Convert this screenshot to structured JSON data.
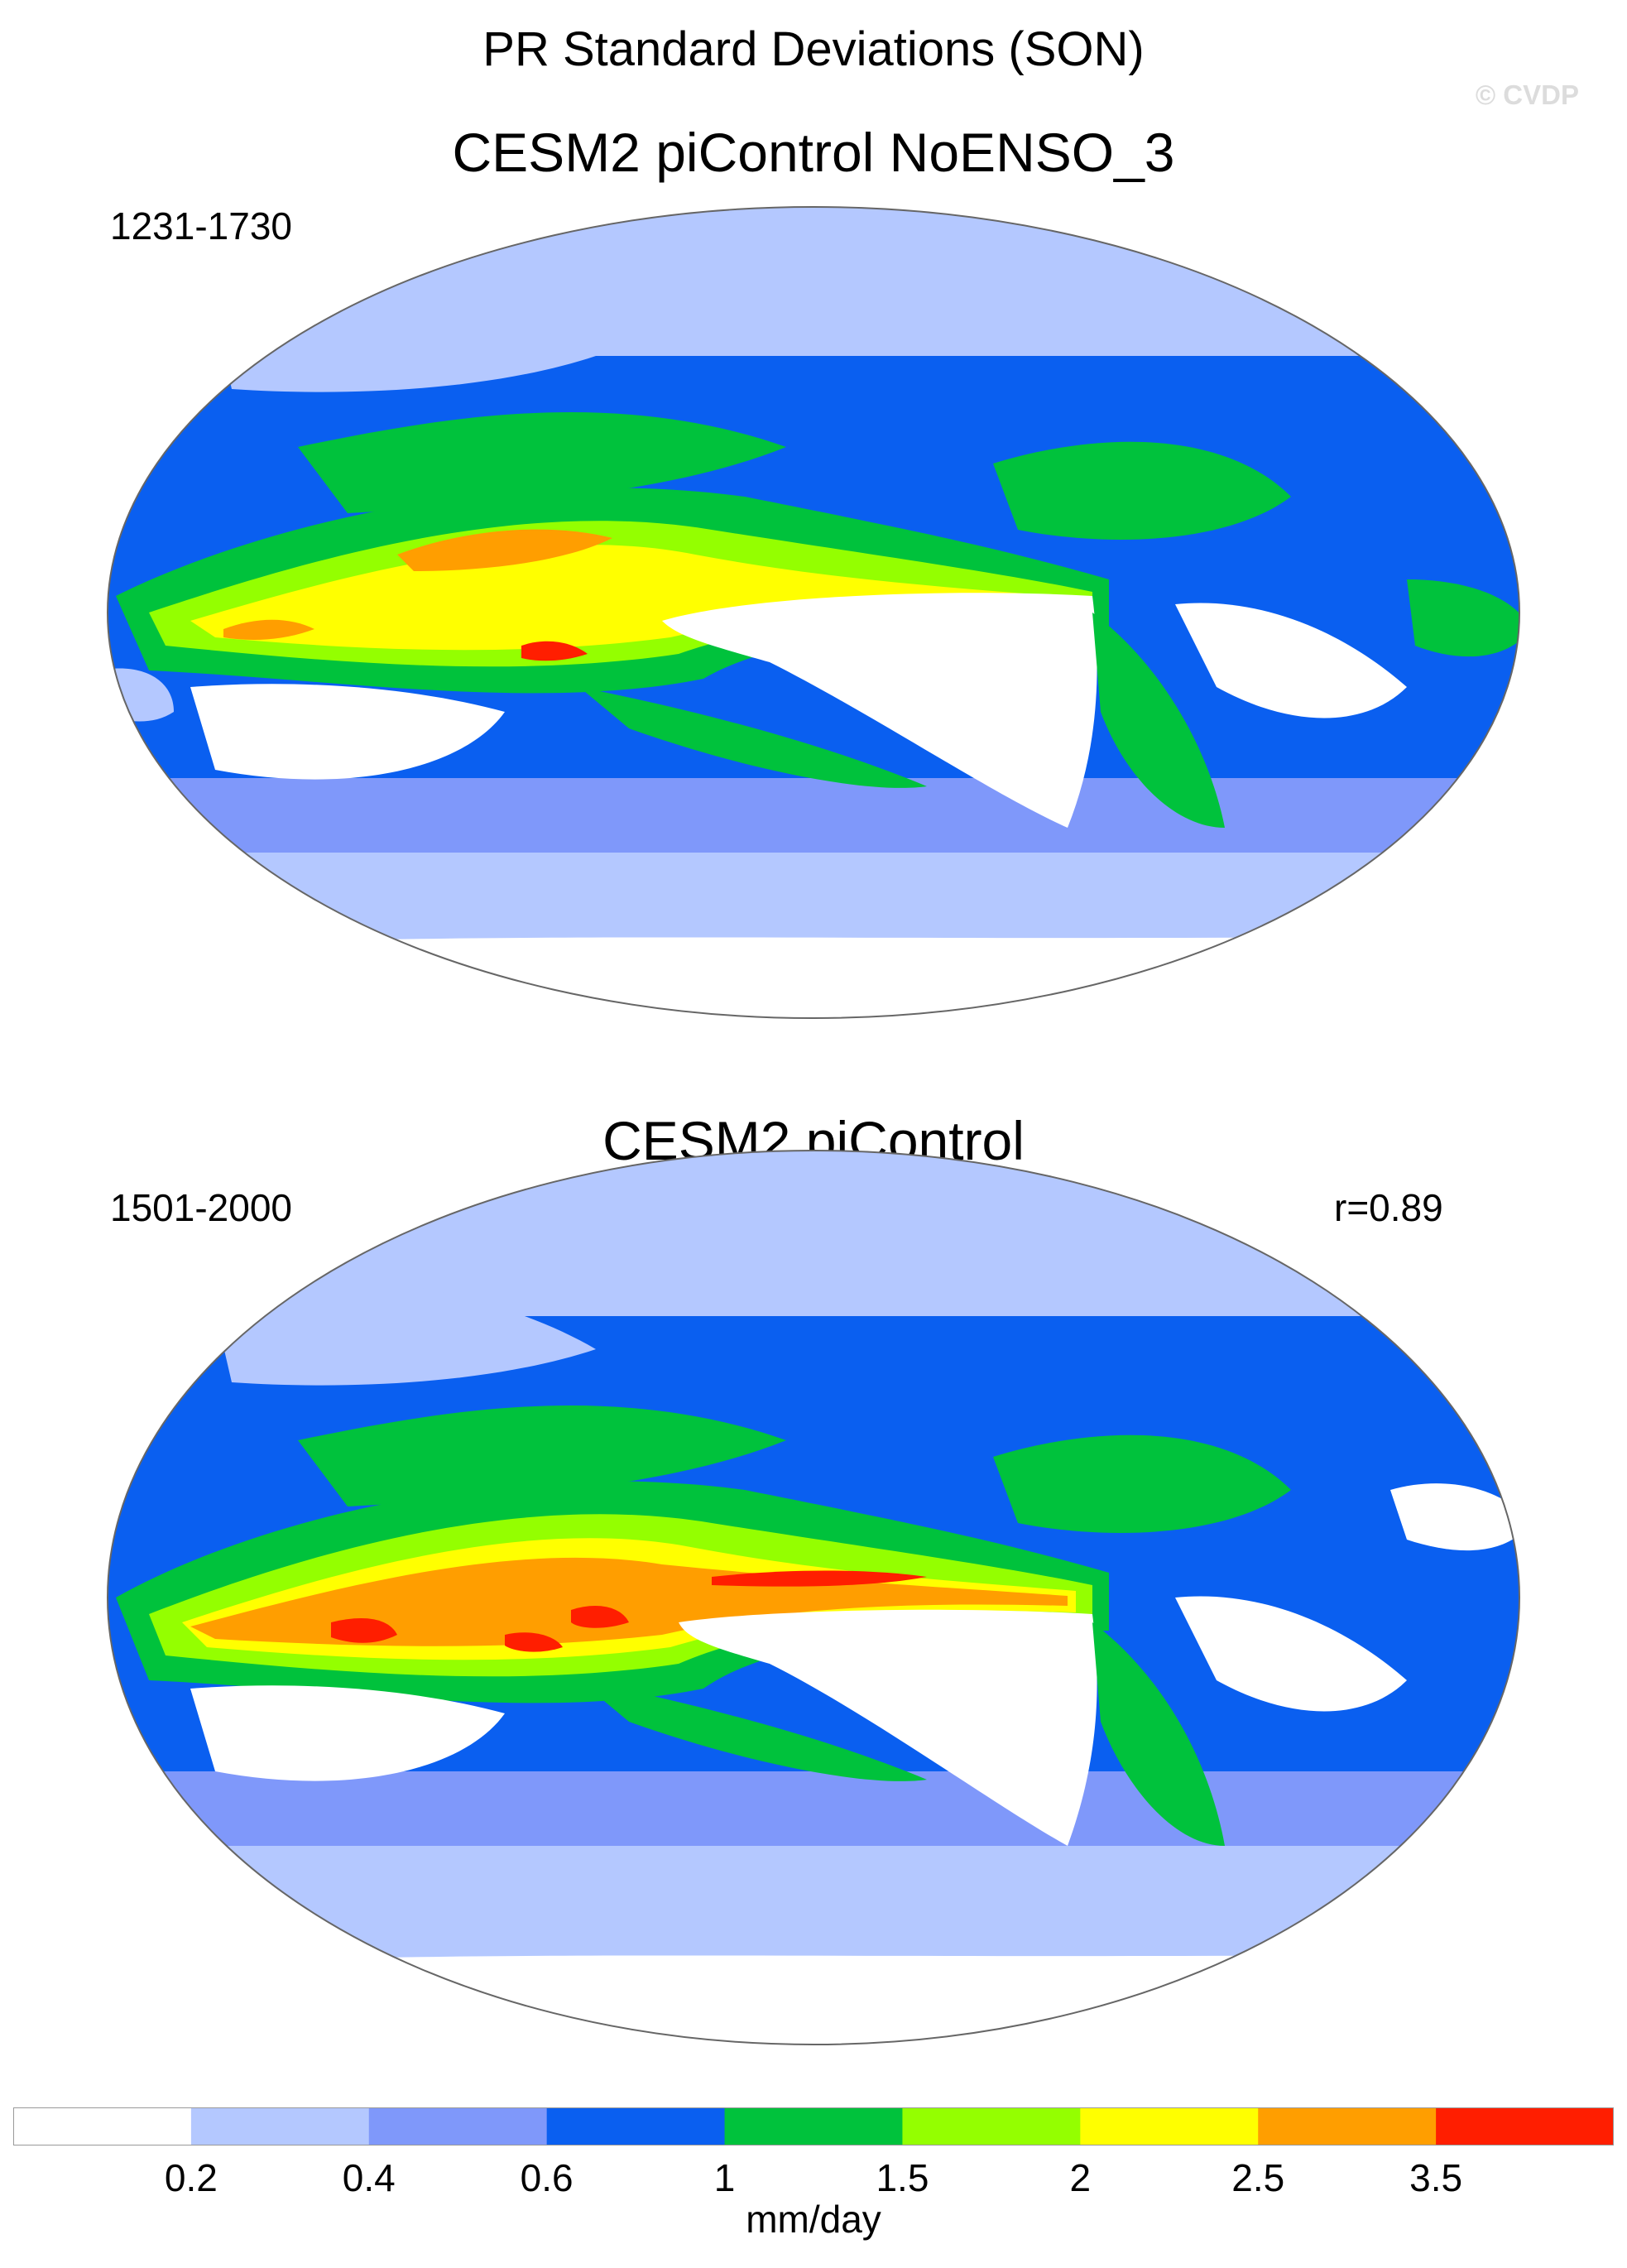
{
  "figure": {
    "title": "PR Standard Deviations (SON)",
    "watermark": "© CVDP"
  },
  "panels": [
    {
      "title": "CESM2 piControl NoENSO_3",
      "years": "1231-1730",
      "stat": ""
    },
    {
      "title": "CESM2 piControl",
      "years": "1501-2000",
      "stat": "r=0.89"
    }
  ],
  "colorbar": {
    "units": "mm/day",
    "ticks": [
      "0.2",
      "0.4",
      "0.6",
      "1",
      "1.5",
      "2",
      "2.5",
      "3.5"
    ],
    "colors": [
      "#ffffff",
      "#b4c8ff",
      "#7f98fa",
      "#0a5ff0",
      "#00c23c",
      "#94ff00",
      "#ffff00",
      "#ff9e00",
      "#ff1e00"
    ]
  },
  "chart_data": {
    "type": "heatmap",
    "projection": "Robinson, Pacific-centred",
    "variable": "precipitation interannual standard deviation, September–November",
    "units": "mm/day",
    "levels": [
      0.2,
      0.4,
      0.6,
      1,
      1.5,
      2,
      2.5,
      3.5
    ],
    "maps": [
      {
        "panel": "CESM2 piControl NoENSO_3",
        "years": "1231-1730"
      },
      {
        "panel": "CESM2 piControl",
        "years": "1501-2000",
        "pattern_correlation": 0.89
      }
    ]
  }
}
